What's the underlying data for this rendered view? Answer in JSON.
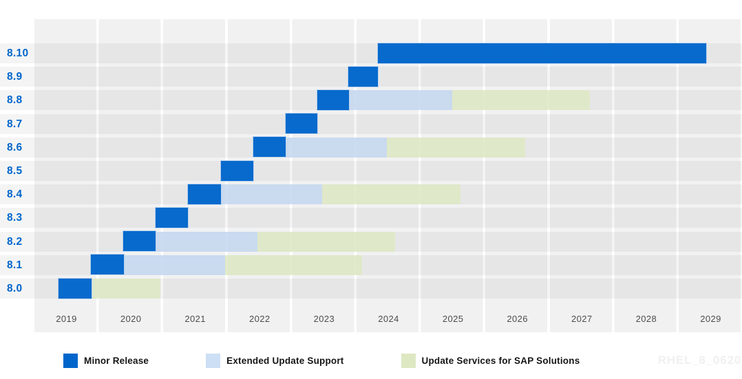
{
  "watermark": "RHEL_8_0620",
  "legend": {
    "items": [
      {
        "key": "minor",
        "label": "Minor Release",
        "color": "#0066cc"
      },
      {
        "key": "eus",
        "label": "Extended Update Support",
        "color": "#cddff5"
      },
      {
        "key": "sap",
        "label": "Update Services for SAP Solutions",
        "color": "#dde8c2"
      }
    ]
  },
  "chart_data": {
    "type": "bar",
    "subtype": "gantt-timeline",
    "title": "",
    "orientation": "horizontal",
    "grid": "year-columns",
    "legend_position": "bottom",
    "x_range": [
      2019,
      2030
    ],
    "x_ticks": [
      "2019",
      "2020",
      "2021",
      "2022",
      "2023",
      "2024",
      "2025",
      "2026",
      "2027",
      "2028",
      "2029"
    ],
    "categories": [
      "8.10",
      "8.9",
      "8.8",
      "8.7",
      "8.6",
      "8.5",
      "8.4",
      "8.3",
      "8.2",
      "8.1",
      "8.0"
    ],
    "series_colors": {
      "minor": "#0066cc",
      "eus": "#c6d8f0",
      "sap": "#dde8c2"
    },
    "rows": [
      {
        "version": "8.10",
        "segments": [
          {
            "kind": "minor",
            "start": 2024.34,
            "end": 2029.43
          }
        ]
      },
      {
        "version": "8.9",
        "segments": [
          {
            "kind": "minor",
            "start": 2023.88,
            "end": 2024.34
          }
        ]
      },
      {
        "version": "8.8",
        "segments": [
          {
            "kind": "minor",
            "start": 2023.4,
            "end": 2023.89
          },
          {
            "kind": "eus",
            "start": 2023.89,
            "end": 2025.48
          },
          {
            "kind": "sap",
            "start": 2025.48,
            "end": 2027.62
          }
        ]
      },
      {
        "version": "8.7",
        "segments": [
          {
            "kind": "minor",
            "start": 2022.9,
            "end": 2023.4
          }
        ]
      },
      {
        "version": "8.6",
        "segments": [
          {
            "kind": "minor",
            "start": 2022.4,
            "end": 2022.9
          },
          {
            "kind": "eus",
            "start": 2022.9,
            "end": 2024.47
          },
          {
            "kind": "sap",
            "start": 2024.47,
            "end": 2026.62
          }
        ]
      },
      {
        "version": "8.5",
        "segments": [
          {
            "kind": "minor",
            "start": 2021.9,
            "end": 2022.4
          }
        ]
      },
      {
        "version": "8.4",
        "segments": [
          {
            "kind": "minor",
            "start": 2021.39,
            "end": 2021.9
          },
          {
            "kind": "eus",
            "start": 2021.9,
            "end": 2023.47
          },
          {
            "kind": "sap",
            "start": 2023.47,
            "end": 2025.61
          }
        ]
      },
      {
        "version": "8.3",
        "segments": [
          {
            "kind": "minor",
            "start": 2020.89,
            "end": 2021.39
          }
        ]
      },
      {
        "version": "8.2",
        "segments": [
          {
            "kind": "minor",
            "start": 2020.38,
            "end": 2020.89
          },
          {
            "kind": "eus",
            "start": 2020.89,
            "end": 2022.46
          },
          {
            "kind": "sap",
            "start": 2022.46,
            "end": 2024.6
          }
        ]
      },
      {
        "version": "8.1",
        "segments": [
          {
            "kind": "minor",
            "start": 2019.88,
            "end": 2020.39
          },
          {
            "kind": "eus",
            "start": 2020.39,
            "end": 2021.96
          },
          {
            "kind": "sap",
            "start": 2021.96,
            "end": 2024.09
          }
        ]
      },
      {
        "version": "8.0",
        "segments": [
          {
            "kind": "minor",
            "start": 2019.38,
            "end": 2019.89
          },
          {
            "kind": "sap",
            "start": 2019.89,
            "end": 2020.96
          }
        ]
      }
    ]
  }
}
